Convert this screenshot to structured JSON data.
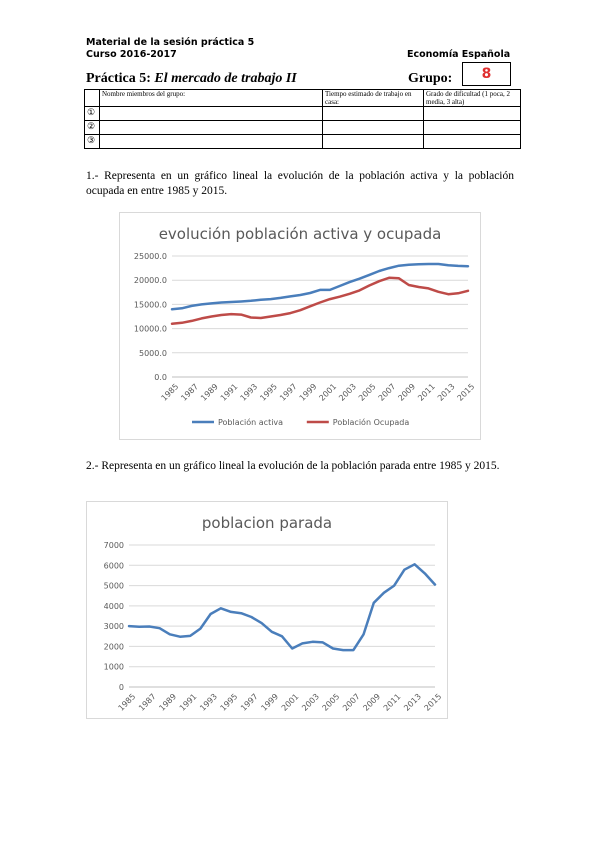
{
  "header": {
    "material": "Material de la sesión práctica 5",
    "curso": "Curso 2016-2017",
    "subject": "Economía Española"
  },
  "practice": {
    "label": "Práctica 5:",
    "name": "El mercado de trabajo II",
    "group_label": "Grupo:",
    "group_number": "8"
  },
  "members_table": {
    "headers": [
      "Nombre miembros del grupo:",
      "Tiempo estimado de trabajo en casa:",
      "Grado de dificultad (1 poca, 2 media, 3 alta)"
    ],
    "rows": [
      "①",
      "②",
      "③"
    ]
  },
  "questions": {
    "q1": "1.- Representa en un gráfico lineal la evolución de la población activa y la población ocupada en entre 1985 y 2015.",
    "q2": "2.- Representa en un gráfico lineal la evolución de la población parada entre 1985 y 2015."
  },
  "chart_data": [
    {
      "type": "line",
      "title": "evolución población activa y ocupada",
      "x": [
        1985,
        1986,
        1987,
        1988,
        1989,
        1990,
        1991,
        1992,
        1993,
        1994,
        1995,
        1996,
        1997,
        1998,
        1999,
        2000,
        2001,
        2002,
        2003,
        2004,
        2005,
        2006,
        2007,
        2008,
        2009,
        2010,
        2011,
        2012,
        2013,
        2014,
        2015
      ],
      "x_tick_labels": [
        "1985",
        "1987",
        "1989",
        "1991",
        "1993",
        "1995",
        "1997",
        "1999",
        "2001",
        "2003",
        "2005",
        "2007",
        "2009",
        "2011",
        "2013",
        "2015"
      ],
      "y_tick_labels": [
        "0.0",
        "5000.0",
        "10000.0",
        "15000.0",
        "20000.0",
        "25000.0"
      ],
      "ylim": [
        0,
        25000
      ],
      "series": [
        {
          "name": "Población activa",
          "color": "#4a7ebb",
          "values": [
            14000,
            14200,
            14700,
            15000,
            15200,
            15400,
            15500,
            15600,
            15750,
            15950,
            16100,
            16350,
            16650,
            16950,
            17350,
            18000,
            18000,
            18800,
            19600,
            20300,
            21100,
            21900,
            22500,
            23000,
            23200,
            23300,
            23350,
            23350,
            23100,
            22950,
            22900
          ]
        },
        {
          "name": "Población Ocupada",
          "color": "#be4b48",
          "values": [
            11000,
            11200,
            11600,
            12100,
            12500,
            12800,
            13000,
            12900,
            12300,
            12200,
            12500,
            12800,
            13200,
            13800,
            14600,
            15400,
            16100,
            16600,
            17200,
            17900,
            18900,
            19800,
            20500,
            20400,
            19000,
            18600,
            18300,
            17600,
            17100,
            17300,
            17800
          ]
        }
      ]
    },
    {
      "type": "line",
      "title": "poblacion parada",
      "x": [
        1985,
        1986,
        1987,
        1988,
        1989,
        1990,
        1991,
        1992,
        1993,
        1994,
        1995,
        1996,
        1997,
        1998,
        1999,
        2000,
        2001,
        2002,
        2003,
        2004,
        2005,
        2006,
        2007,
        2008,
        2009,
        2010,
        2011,
        2012,
        2013,
        2014,
        2015
      ],
      "x_tick_labels": [
        "1985",
        "1987",
        "1989",
        "1991",
        "1993",
        "1995",
        "1997",
        "1999",
        "2001",
        "2003",
        "2005",
        "2007",
        "2009",
        "2011",
        "2013",
        "2015"
      ],
      "y_tick_labels": [
        "0",
        "1000",
        "2000",
        "3000",
        "4000",
        "5000",
        "6000",
        "7000"
      ],
      "ylim": [
        0,
        7000
      ],
      "series": [
        {
          "color": "#4a7ebb",
          "values": [
            3000,
            2970,
            2980,
            2900,
            2600,
            2480,
            2520,
            2880,
            3600,
            3880,
            3700,
            3640,
            3450,
            3150,
            2720,
            2500,
            1900,
            2150,
            2230,
            2200,
            1900,
            1820,
            1820,
            2600,
            4150,
            4650,
            5000,
            5780,
            6050,
            5600,
            5050
          ]
        }
      ]
    }
  ]
}
